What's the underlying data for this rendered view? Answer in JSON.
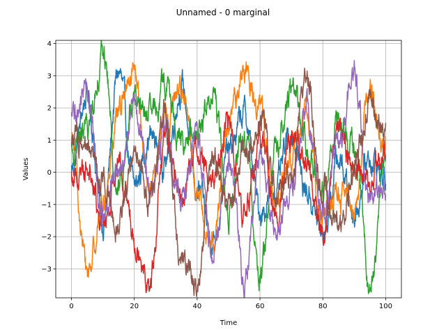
{
  "chart_data": {
    "type": "line",
    "title": "Unnamed - 0 marginal",
    "xlabel": "Time",
    "ylabel": "Values",
    "xlim": [
      -5,
      105
    ],
    "ylim": [
      -3.9,
      4.1
    ],
    "xticks": [
      0,
      20,
      40,
      60,
      80,
      100
    ],
    "yticks": [
      -3,
      -2,
      -1,
      0,
      1,
      2,
      3,
      4
    ],
    "grid": true,
    "series_count": 6,
    "series": [
      {
        "color": "#1f77b4",
        "x": [
          0,
          5,
          10,
          15,
          20,
          25,
          30,
          35,
          40,
          45,
          50,
          55,
          60,
          65,
          70,
          75,
          80,
          85,
          90,
          95,
          100
        ],
        "values": [
          0.1,
          2.4,
          -1.5,
          3.1,
          -0.5,
          1.1,
          0.4,
          2.7,
          -0.6,
          -2.1,
          0.6,
          1.8,
          -1.2,
          -0.5,
          1.2,
          -0.6,
          -1.9,
          0.4,
          -1.2,
          0.5,
          -0.2
        ]
      },
      {
        "color": "#ff7f0e",
        "x": [
          0,
          5,
          10,
          15,
          20,
          25,
          30,
          35,
          40,
          45,
          50,
          55,
          60,
          65,
          70,
          75,
          80,
          85,
          90,
          95,
          100
        ],
        "values": [
          0.9,
          -3.1,
          -1.0,
          2.1,
          2.8,
          -0.4,
          1.6,
          2.7,
          -0.5,
          -2.3,
          1.5,
          3.2,
          2.1,
          -1.3,
          0.6,
          1.5,
          -1.1,
          -0.8,
          -1.0,
          2.5,
          0.8
        ]
      },
      {
        "color": "#2ca02c",
        "x": [
          0,
          5,
          10,
          15,
          20,
          25,
          30,
          35,
          40,
          45,
          50,
          55,
          60,
          65,
          70,
          75,
          80,
          85,
          90,
          95,
          100
        ],
        "values": [
          0.6,
          1.3,
          3.7,
          -0.6,
          2.4,
          1.6,
          2.7,
          0.9,
          1.2,
          2.6,
          -1.2,
          1.1,
          -3.1,
          0.6,
          2.8,
          0.9,
          -0.6,
          1.6,
          0.8,
          -3.5,
          0.4
        ]
      },
      {
        "color": "#d62728",
        "x": [
          0,
          5,
          10,
          15,
          20,
          25,
          30,
          35,
          40,
          45,
          50,
          55,
          60,
          65,
          70,
          75,
          80,
          85,
          90,
          95,
          100
        ],
        "values": [
          -0.2,
          0.3,
          -1.7,
          0.5,
          -1.8,
          -3.4,
          1.0,
          -0.8,
          0.8,
          -0.3,
          1.6,
          -1.4,
          1.0,
          -1.3,
          1.3,
          0.4,
          -1.9,
          1.5,
          0.2,
          -0.4,
          0.6
        ]
      },
      {
        "color": "#9467bd",
        "x": [
          0,
          5,
          10,
          15,
          20,
          25,
          30,
          35,
          40,
          45,
          50,
          55,
          60,
          65,
          70,
          75,
          80,
          85,
          90,
          95,
          100
        ],
        "values": [
          1.6,
          2.6,
          -1.5,
          0.2,
          2.1,
          -0.6,
          1.2,
          -0.8,
          0.9,
          -2.5,
          0.6,
          -3.2,
          0.4,
          -2.1,
          -0.4,
          1.9,
          -1.5,
          0.8,
          3.0,
          -1.1,
          -0.3
        ]
      },
      {
        "color": "#8c564b",
        "x": [
          0,
          5,
          10,
          15,
          20,
          25,
          30,
          35,
          40,
          45,
          50,
          55,
          60,
          65,
          70,
          75,
          80,
          85,
          90,
          95,
          100
        ],
        "values": [
          1.1,
          0.4,
          -0.2,
          -1.6,
          0.8,
          -0.9,
          1.8,
          -2.8,
          -3.5,
          0.6,
          -1.1,
          0.4,
          1.6,
          -0.5,
          0.2,
          2.9,
          -0.6,
          -1.8,
          0.1,
          2.0,
          1.2
        ]
      }
    ]
  }
}
